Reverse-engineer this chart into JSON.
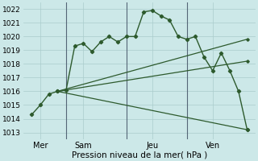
{
  "xlabel": "Pression niveau de la mer( hPa )",
  "background_color": "#cce8e8",
  "grid_color": "#aacccc",
  "line_color": "#2d5a2d",
  "ylim": [
    1012.5,
    1022.5
  ],
  "yticks": [
    1013,
    1014,
    1015,
    1016,
    1017,
    1018,
    1019,
    1020,
    1021,
    1022
  ],
  "xlim": [
    -0.5,
    13.0
  ],
  "xtick_positions": [
    0.5,
    3.0,
    7.0,
    10.5
  ],
  "xtick_labels": [
    "Mer",
    "Sam",
    "Jeu",
    "Ven"
  ],
  "vline_positions": [
    2.0,
    5.5,
    9.0
  ],
  "main_line": {
    "x": [
      0.0,
      0.5,
      1.0,
      1.5,
      2.0,
      2.5,
      3.0,
      3.5,
      4.0,
      4.5,
      5.0,
      5.5,
      6.0,
      6.5,
      7.0,
      7.5,
      8.0,
      8.5,
      9.0,
      9.5,
      10.0,
      10.5,
      11.0,
      11.5,
      12.0,
      12.5
    ],
    "y": [
      1014.3,
      1015.0,
      1015.8,
      1016.0,
      1016.1,
      1019.3,
      1019.5,
      1018.9,
      1019.6,
      1020.0,
      1019.6,
      1020.0,
      1020.0,
      1021.8,
      1021.9,
      1021.5,
      1021.2,
      1020.0,
      1019.8,
      1020.0,
      1018.5,
      1017.5,
      1018.8,
      1017.5,
      1016.0,
      1013.2
    ]
  },
  "fan_lines": [
    {
      "x": [
        1.5,
        12.5
      ],
      "y": [
        1016.0,
        1019.8
      ]
    },
    {
      "x": [
        1.5,
        12.5
      ],
      "y": [
        1016.0,
        1018.2
      ]
    },
    {
      "x": [
        1.5,
        12.5
      ],
      "y": [
        1016.0,
        1013.2
      ]
    }
  ]
}
